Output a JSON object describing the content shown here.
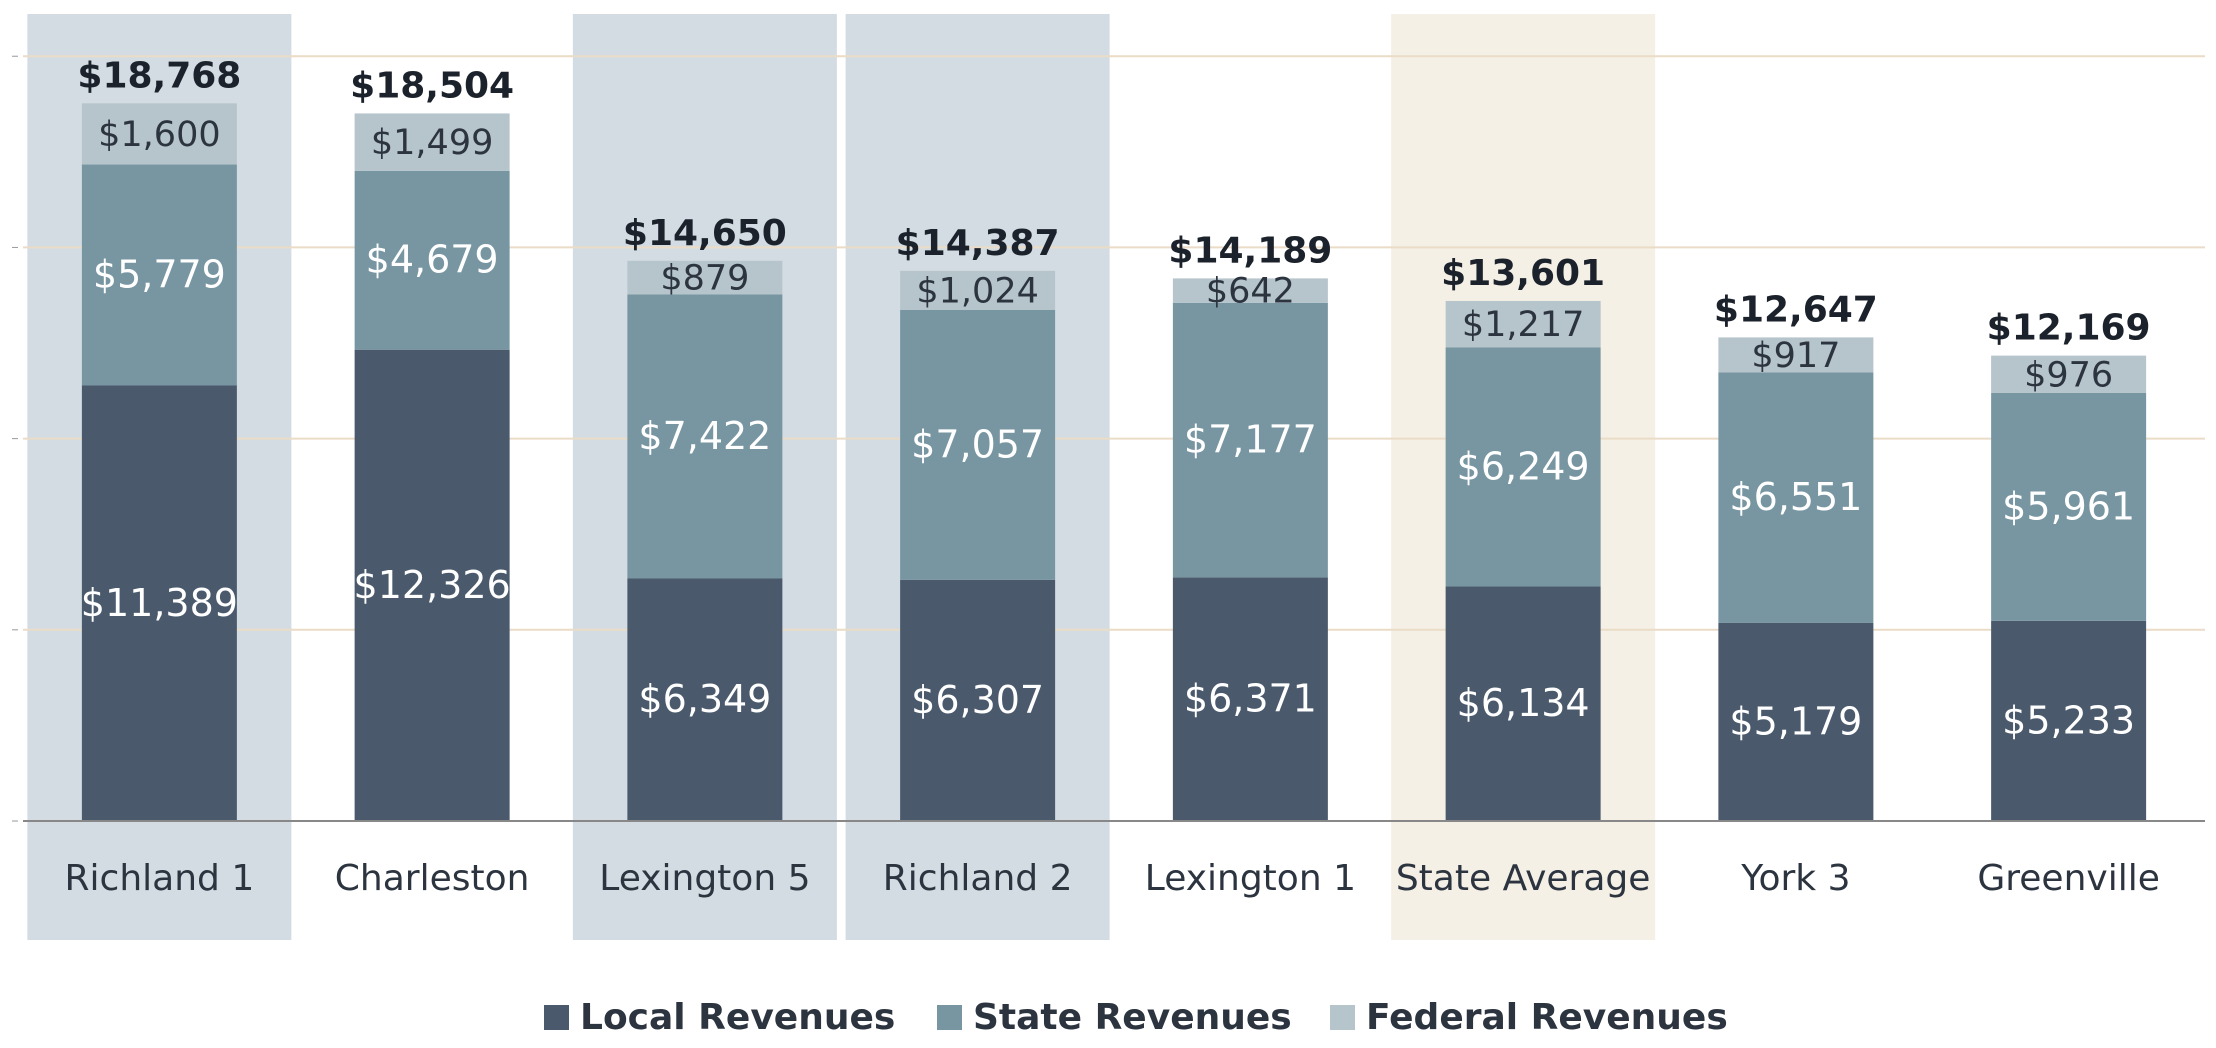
{
  "chart_data": {
    "type": "stacked_bar",
    "categories": [
      "Richland 1",
      "Charleston",
      "Lexington 5",
      "Richland 2",
      "Lexington 1",
      "State Average",
      "York 3",
      "Greenville"
    ],
    "series": [
      {
        "name": "Local Revenues",
        "color": "#4a5a6c",
        "values": [
          11389,
          12326,
          6349,
          6307,
          6371,
          6134,
          5179,
          5233
        ],
        "value_labels": [
          "$11,389",
          "$12,326",
          "$6,349",
          "$6,307",
          "$6,371",
          "$6,134",
          "$5,179",
          "$5,233"
        ]
      },
      {
        "name": "State Revenues",
        "color": "#7896a2",
        "values": [
          5779,
          4679,
          7422,
          7057,
          7177,
          6249,
          6551,
          5961
        ],
        "value_labels": [
          "$5,779",
          "$4,679",
          "$7,422",
          "$7,057",
          "$7,177",
          "$6,249",
          "$6,551",
          "$5,961"
        ]
      },
      {
        "name": "Federal Revenues",
        "color": "#b6c4cb",
        "values": [
          1600,
          1499,
          879,
          1024,
          642,
          1217,
          917,
          976
        ],
        "value_labels": [
          "$1,600",
          "$1,499",
          "$879",
          "$1,024",
          "$642",
          "$1,217",
          "$917",
          "$976"
        ]
      }
    ],
    "totals": [
      18768,
      18504,
      14650,
      14387,
      14189,
      13601,
      12647,
      12169
    ],
    "total_labels": [
      "$18,768",
      "$18,504",
      "$14,650",
      "$14,387",
      "$14,189",
      "$13,601",
      "$12,647",
      "$12,169"
    ],
    "highlight_colors": [
      "#d3dce2",
      null,
      "#d3dce2",
      "#d3dce2",
      null,
      "#f5f0e6",
      null,
      null
    ],
    "ylim": [
      0,
      21000
    ],
    "yticks": [
      0,
      5000,
      10000,
      15000,
      20000
    ],
    "grid": true,
    "grid_color": "#eadcc6",
    "legend": "bottom"
  }
}
